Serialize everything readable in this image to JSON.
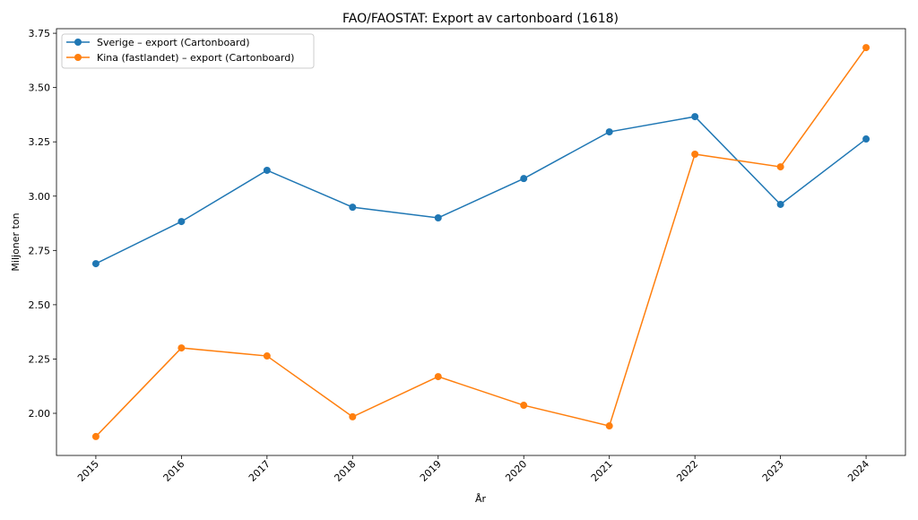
{
  "chart_data": {
    "type": "line",
    "title": "FAO/FAOSTAT: Export av cartonboard (1618)",
    "xlabel": "År",
    "ylabel": "Miljoner ton",
    "x": [
      "2015",
      "2016",
      "2017",
      "2018",
      "2019",
      "2020",
      "2021",
      "2022",
      "2023",
      "2024"
    ],
    "xlim": [
      2014.54,
      2024.46
    ],
    "ylim": [
      1.806,
      3.771
    ],
    "yticks": [
      "2.00",
      "2.25",
      "2.50",
      "2.75",
      "3.00",
      "3.25",
      "3.50",
      "3.75"
    ],
    "grid": false,
    "legend_position": "top-left",
    "series": [
      {
        "name": "Sverige – export (Cartonboard)",
        "color": "#1f77b4",
        "values": [
          2.689,
          2.883,
          3.119,
          2.949,
          2.9,
          3.081,
          3.296,
          3.366,
          2.962,
          3.263
        ]
      },
      {
        "name": "Kina (fastlandet) – export (Cartonboard)",
        "color": "#ff7f0e",
        "values": [
          1.893,
          2.301,
          2.264,
          1.984,
          2.169,
          2.037,
          1.942,
          3.193,
          3.135,
          3.684
        ]
      }
    ]
  }
}
